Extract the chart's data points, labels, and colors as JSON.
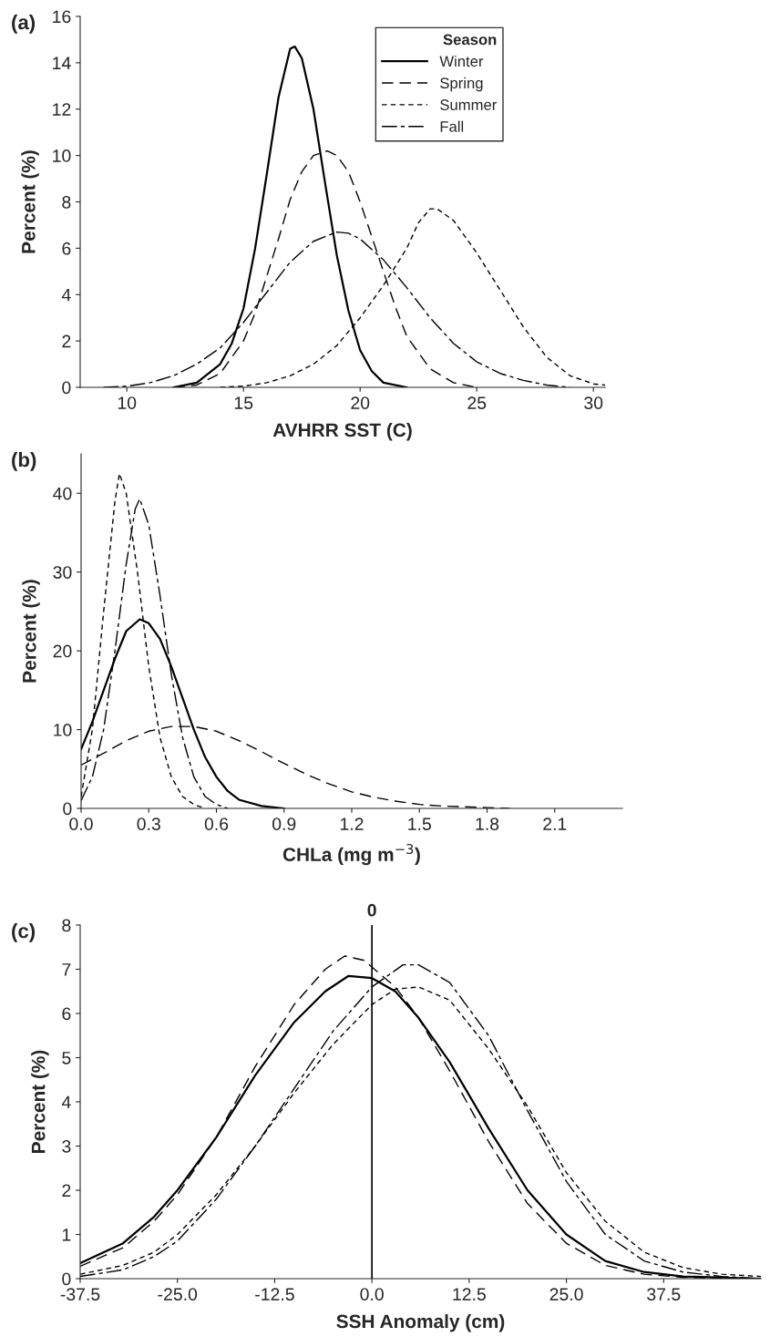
{
  "chart_data": [
    {
      "type": "line",
      "title": "(a)",
      "xlabel": "AVHRR SST (C)",
      "ylabel": "Percent (%)",
      "legend_title": "Season",
      "legend": "top right",
      "grid": false,
      "xlim": [
        8,
        30.5
      ],
      "xticks": [
        10,
        15,
        20,
        25,
        30
      ],
      "ylim": [
        0,
        16
      ],
      "yticks": [
        0,
        2,
        4,
        6,
        8,
        10,
        12,
        14,
        16
      ],
      "series": [
        {
          "name": "Winter",
          "color": "#000000",
          "line_style": "solid",
          "x": [
            12,
            13,
            14,
            14.5,
            15,
            15.5,
            16,
            16.5,
            17,
            17.2,
            17.5,
            18,
            18.5,
            19,
            19.5,
            20,
            20.5,
            21,
            22
          ],
          "values": [
            0,
            0.2,
            1.0,
            1.9,
            3.4,
            6,
            9.2,
            12.5,
            14.6,
            14.7,
            14.2,
            12,
            8.8,
            5.7,
            3.3,
            1.6,
            0.7,
            0.2,
            0
          ]
        },
        {
          "name": "Spring",
          "color": "#000000",
          "line_style": "longdash",
          "x": [
            12,
            13,
            14,
            15,
            15.5,
            16,
            16.5,
            17,
            17.5,
            18,
            18.6,
            19,
            19.5,
            20,
            20.5,
            21,
            21.5,
            22,
            23,
            24,
            25
          ],
          "values": [
            0,
            0.1,
            0.6,
            2.0,
            3.2,
            4.8,
            6.4,
            8.1,
            9.3,
            10,
            10.2,
            10,
            9.3,
            8,
            6.5,
            5,
            3.5,
            2.2,
            0.8,
            0.2,
            0
          ]
        },
        {
          "name": "Summer",
          "color": "#000000",
          "line_style": "shortdash",
          "x": [
            14,
            15,
            16,
            17,
            18,
            19,
            20,
            21,
            22,
            22.5,
            23,
            23.3,
            24,
            25,
            26,
            27,
            28,
            29,
            30,
            30.5
          ],
          "values": [
            0,
            0.05,
            0.2,
            0.5,
            1.0,
            1.8,
            3.0,
            4.4,
            6.0,
            7.1,
            7.7,
            7.7,
            7.2,
            5.8,
            4.2,
            2.6,
            1.3,
            0.5,
            0.15,
            0.1
          ]
        },
        {
          "name": "Fall",
          "color": "#000000",
          "line_style": "dashdot",
          "x": [
            9,
            10,
            11,
            12,
            13,
            14,
            15,
            16,
            17,
            18,
            19,
            19.5,
            20,
            21,
            22,
            23,
            24,
            25,
            26,
            27,
            28,
            29
          ],
          "values": [
            0,
            0.05,
            0.2,
            0.5,
            1.0,
            1.7,
            2.8,
            4.1,
            5.4,
            6.3,
            6.7,
            6.65,
            6.4,
            5.5,
            4.3,
            3.0,
            1.9,
            1.1,
            0.6,
            0.3,
            0.1,
            0
          ]
        }
      ]
    },
    {
      "type": "line",
      "title": "(b)",
      "xlabel": "CHLa (mg m$^{−3}$)",
      "ylabel": "Percent (%)",
      "grid": false,
      "xlim": [
        0,
        2.4
      ],
      "xticks": [
        {
          "value": 0,
          "label": "0.0"
        },
        {
          "value": 0.3,
          "label": "0.3"
        },
        {
          "value": 0.6,
          "label": "0.6"
        },
        {
          "value": 0.9,
          "label": "0.9"
        },
        {
          "value": 1.2,
          "label": "1.2"
        },
        {
          "value": 1.5,
          "label": "1.5"
        },
        {
          "value": 1.8,
          "label": "1.8"
        },
        {
          "value": 2.1,
          "label": "2.1"
        }
      ],
      "ylim": [
        0,
        45
      ],
      "yticks": [
        0,
        10,
        20,
        30,
        40
      ],
      "series": [
        {
          "color": "#000000",
          "line_style": "solid",
          "x": [
            0,
            0.05,
            0.1,
            0.15,
            0.2,
            0.26,
            0.3,
            0.35,
            0.4,
            0.45,
            0.5,
            0.55,
            0.6,
            0.65,
            0.7,
            0.8,
            0.9
          ],
          "values": [
            7.5,
            11,
            15,
            19,
            22.5,
            24,
            23.5,
            21.5,
            18,
            14,
            10,
            6.5,
            4,
            2.2,
            1.1,
            0.3,
            0
          ]
        },
        {
          "color": "#000000",
          "line_style": "longdash",
          "x": [
            0,
            0.1,
            0.2,
            0.3,
            0.4,
            0.5,
            0.6,
            0.7,
            0.8,
            0.9,
            1.0,
            1.1,
            1.2,
            1.3,
            1.4,
            1.5,
            1.6,
            1.7,
            1.8,
            1.9
          ],
          "values": [
            5.5,
            7,
            8.6,
            9.8,
            10.4,
            10.4,
            9.8,
            8.6,
            7.2,
            5.7,
            4.3,
            3.1,
            2.1,
            1.4,
            0.9,
            0.5,
            0.3,
            0.2,
            0.1,
            0
          ]
        },
        {
          "color": "#000000",
          "line_style": "shortdash",
          "x": [
            0,
            0.05,
            0.1,
            0.15,
            0.17,
            0.2,
            0.25,
            0.3,
            0.35,
            0.4,
            0.45,
            0.5,
            0.55
          ],
          "values": [
            1.5,
            10,
            25,
            39,
            42.5,
            40,
            30,
            18,
            9,
            4,
            1.5,
            0.5,
            0
          ]
        },
        {
          "color": "#000000",
          "line_style": "dashdot",
          "x": [
            0,
            0.05,
            0.1,
            0.15,
            0.2,
            0.24,
            0.26,
            0.3,
            0.35,
            0.4,
            0.45,
            0.5,
            0.55,
            0.6,
            0.65
          ],
          "values": [
            1,
            4,
            10,
            20,
            31,
            38,
            39.3,
            36,
            27,
            17,
            9,
            4,
            1.5,
            0.5,
            0
          ]
        }
      ]
    },
    {
      "type": "line",
      "title": "(c)",
      "xlabel": "SSH Anomaly (cm)",
      "ylabel": "Percent (%)",
      "grid": false,
      "xlim": [
        -37.5,
        50
      ],
      "xticks": [
        {
          "value": -37.5,
          "label": "-37.5"
        },
        {
          "value": -25,
          "label": "-25.0"
        },
        {
          "value": -12.5,
          "label": "-12.5"
        },
        {
          "value": 0,
          "label": "0.0"
        },
        {
          "value": 12.5,
          "label": "12.5"
        },
        {
          "value": 25,
          "label": "25.0"
        },
        {
          "value": 37.5,
          "label": "37.5"
        }
      ],
      "ylim": [
        0,
        8
      ],
      "yticks": [
        0,
        1,
        2,
        3,
        4,
        5,
        6,
        7,
        8
      ],
      "ref_lines": [
        {
          "axis": "x",
          "value": 0,
          "label": "0",
          "color": "#000000"
        }
      ],
      "series": [
        {
          "color": "#000000",
          "line_style": "solid",
          "x": [
            -37.5,
            -32,
            -28,
            -25,
            -20,
            -15,
            -10,
            -6,
            -3,
            0,
            3,
            6,
            10,
            15,
            20,
            25,
            30,
            35,
            40,
            50
          ],
          "values": [
            0.35,
            0.8,
            1.4,
            2.0,
            3.2,
            4.6,
            5.8,
            6.5,
            6.85,
            6.8,
            6.5,
            5.9,
            4.9,
            3.4,
            2.0,
            1.0,
            0.4,
            0.15,
            0.05,
            0
          ]
        },
        {
          "color": "#000000",
          "line_style": "longdash",
          "x": [
            -37.5,
            -32,
            -28,
            -25,
            -20,
            -15,
            -10,
            -6,
            -3.5,
            -1,
            3,
            6,
            10,
            15,
            20,
            25,
            30,
            35,
            40,
            50
          ],
          "values": [
            0.28,
            0.7,
            1.3,
            1.9,
            3.2,
            4.8,
            6.2,
            7.0,
            7.3,
            7.2,
            6.6,
            5.9,
            4.7,
            3.1,
            1.7,
            0.8,
            0.3,
            0.1,
            0.03,
            0
          ]
        },
        {
          "color": "#000000",
          "line_style": "shortdash",
          "x": [
            -37.5,
            -32,
            -28,
            -25,
            -20,
            -15,
            -10,
            -5,
            0,
            3,
            6,
            10,
            15,
            20,
            25,
            30,
            35,
            40,
            45,
            50
          ],
          "values": [
            0.1,
            0.3,
            0.6,
            1.0,
            1.9,
            3.0,
            4.2,
            5.3,
            6.2,
            6.55,
            6.6,
            6.3,
            5.2,
            3.9,
            2.4,
            1.3,
            0.6,
            0.25,
            0.1,
            0.05
          ]
        },
        {
          "color": "#000000",
          "line_style": "dashdot",
          "x": [
            -37.5,
            -32,
            -28,
            -25,
            -20,
            -15,
            -10,
            -5,
            0,
            4,
            6,
            10,
            15,
            20,
            25,
            30,
            35,
            40,
            45,
            50
          ],
          "values": [
            0.05,
            0.2,
            0.5,
            0.85,
            1.8,
            3.0,
            4.3,
            5.6,
            6.6,
            7.1,
            7.1,
            6.7,
            5.5,
            3.8,
            2.2,
            1.0,
            0.4,
            0.15,
            0.05,
            0
          ]
        }
      ]
    }
  ]
}
